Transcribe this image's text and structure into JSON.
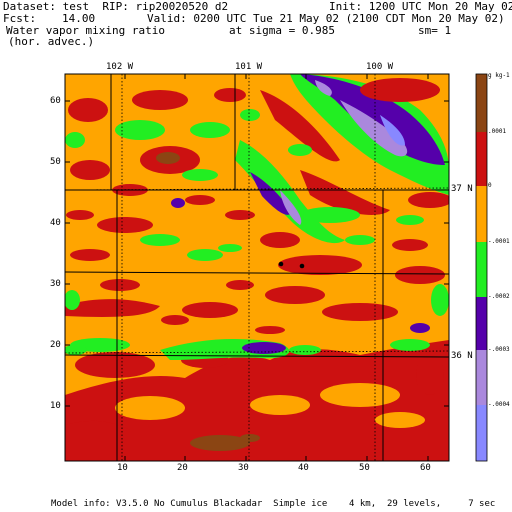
{
  "header": {
    "dataset": "Dataset: test  RIP: rip20020520 d2",
    "init": "Init: 1200 UTC Mon 20 May 02",
    "fcst_label": "Fcst:",
    "fcst_value": "14.00",
    "valid": "Valid: 0200 UTC Tue 21 May 02 (2100 CDT Mon 20 May 02)",
    "field_name": "Water vapor mixing ratio",
    "sigma": "at sigma = 0.985",
    "sm": "sm= 1",
    "field_sub": "(hor. advec.)"
  },
  "map": {
    "x_ticks": [
      "10",
      "20",
      "30",
      "40",
      "50",
      "60"
    ],
    "y_ticks": [
      "60",
      "50",
      "40",
      "30",
      "20",
      "10"
    ],
    "longitude_labels": [
      "102 W",
      "101 W",
      "100 W"
    ],
    "latitude_labels": [
      "37 N",
      "36 N"
    ]
  },
  "colorbar": {
    "unit": "g kg-1",
    "labels": [
      ".0001",
      "0",
      "-.0001",
      "-.0002",
      "-.0003",
      "-.0004"
    ],
    "colors": [
      "#8B4513",
      "#CC1111",
      "#FFA500",
      "#22EE22",
      "#5500AA",
      "#AA88DD",
      "#8888FF"
    ]
  },
  "footer": "Model info: V3.5.0 No Cumulus Blackadar  Simple ice    4 km,  29 levels,     7 sec"
}
